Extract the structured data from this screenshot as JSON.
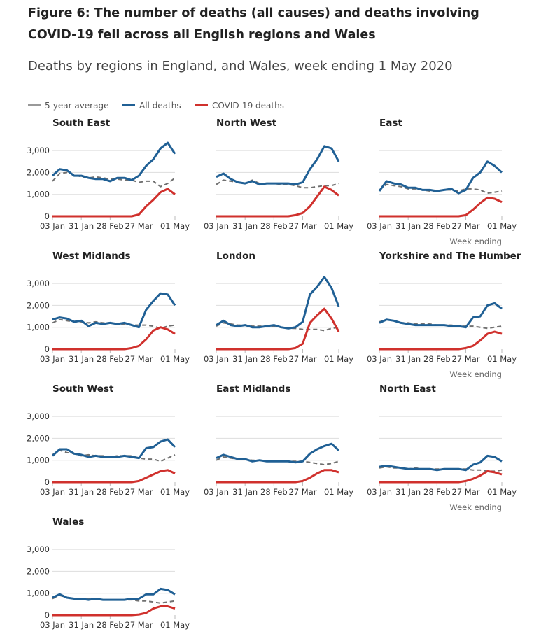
{
  "title": "Figure 6: The number of deaths (all causes) and deaths involving COVID-19 fell across all English regions and Wales",
  "subtitle": "Deaths by regions in England, and Wales, week ending 1 May 2020",
  "chart_data": {
    "type": "line",
    "legend": {
      "position": "top-left",
      "entries": [
        "5-year average",
        "All deaths",
        "COVID-19 deaths"
      ]
    },
    "colors": {
      "5-year average": "#707070",
      "All deaths": "#206095",
      "COVID-19 deaths": "#d0312d"
    },
    "x": [
      "03 Jan",
      "10 Jan",
      "17 Jan",
      "24 Jan",
      "31 Jan",
      "07 Feb",
      "14 Feb",
      "21 Feb",
      "28 Feb",
      "06 Mar",
      "13 Mar",
      "20 Mar",
      "27 Mar",
      "03 Apr",
      "10 Apr",
      "17 Apr",
      "24 Apr",
      "01 May"
    ],
    "x_tick_labels": [
      "03 Jan",
      "31 Jan",
      "28 Feb",
      "27 Mar",
      "01 May"
    ],
    "xlabel": "Week ending",
    "y_tick_labels": [
      "0",
      "1,000",
      "2,000",
      "3,000"
    ],
    "ylim": [
      0,
      3400
    ],
    "panels": [
      {
        "title": "South East",
        "all": [
          1850,
          2150,
          2100,
          1850,
          1850,
          1750,
          1700,
          1700,
          1600,
          1750,
          1750,
          1650,
          1850,
          2300,
          2600,
          3100,
          3350,
          2850
        ],
        "avg": [
          1600,
          1950,
          2000,
          1900,
          1800,
          1750,
          1800,
          1750,
          1700,
          1700,
          1650,
          1650,
          1550,
          1600,
          1600,
          1350,
          1500,
          1750
        ],
        "covid": [
          0,
          0,
          0,
          0,
          0,
          0,
          0,
          0,
          0,
          0,
          0,
          0,
          80,
          450,
          750,
          1100,
          1250,
          1000
        ]
      },
      {
        "title": "North West",
        "all": [
          1800,
          1950,
          1700,
          1550,
          1500,
          1600,
          1450,
          1500,
          1500,
          1500,
          1500,
          1450,
          1550,
          2150,
          2600,
          3200,
          3100,
          2500
        ],
        "avg": [
          1450,
          1650,
          1600,
          1550,
          1500,
          1650,
          1500,
          1500,
          1500,
          1450,
          1450,
          1400,
          1300,
          1300,
          1350,
          1400,
          1400,
          1500
        ],
        "covid": [
          0,
          0,
          0,
          0,
          0,
          0,
          0,
          0,
          0,
          0,
          0,
          50,
          150,
          450,
          900,
          1350,
          1200,
          950
        ]
      },
      {
        "title": "East",
        "all": [
          1150,
          1600,
          1500,
          1450,
          1300,
          1300,
          1200,
          1200,
          1150,
          1200,
          1250,
          1050,
          1200,
          1750,
          2000,
          2500,
          2300,
          2000
        ],
        "avg": [
          1200,
          1450,
          1400,
          1350,
          1250,
          1250,
          1200,
          1150,
          1150,
          1200,
          1200,
          1150,
          1250,
          1250,
          1200,
          1050,
          1100,
          1150
        ],
        "covid": [
          0,
          0,
          0,
          0,
          0,
          0,
          0,
          0,
          0,
          0,
          0,
          0,
          50,
          300,
          600,
          850,
          800,
          650
        ]
      },
      {
        "title": "West Midlands",
        "all": [
          1350,
          1450,
          1400,
          1250,
          1300,
          1050,
          1200,
          1150,
          1200,
          1150,
          1200,
          1100,
          1000,
          1800,
          2200,
          2550,
          2500,
          2000
        ],
        "avg": [
          1200,
          1350,
          1300,
          1250,
          1250,
          1200,
          1250,
          1200,
          1200,
          1150,
          1150,
          1100,
          1100,
          1100,
          1050,
          950,
          1050,
          1100
        ],
        "covid": [
          0,
          0,
          0,
          0,
          0,
          0,
          0,
          0,
          0,
          0,
          0,
          50,
          150,
          450,
          850,
          1000,
          900,
          700
        ]
      },
      {
        "title": "London",
        "all": [
          1100,
          1300,
          1100,
          1050,
          1100,
          1000,
          1000,
          1050,
          1100,
          1000,
          950,
          1000,
          1250,
          2500,
          2850,
          3300,
          2800,
          1950
        ],
        "avg": [
          1050,
          1200,
          1150,
          1100,
          1100,
          1050,
          1050,
          1050,
          1050,
          1000,
          950,
          950,
          900,
          900,
          900,
          850,
          950,
          1000
        ],
        "covid": [
          0,
          0,
          0,
          0,
          0,
          0,
          0,
          0,
          0,
          0,
          0,
          50,
          250,
          1200,
          1550,
          1850,
          1400,
          800
        ]
      },
      {
        "title": "Yorkshire and The Humber",
        "all": [
          1200,
          1350,
          1300,
          1200,
          1150,
          1100,
          1100,
          1100,
          1100,
          1100,
          1050,
          1050,
          1000,
          1450,
          1500,
          2000,
          2100,
          1850
        ],
        "avg": [
          1250,
          1350,
          1300,
          1200,
          1200,
          1150,
          1150,
          1150,
          1100,
          1100,
          1100,
          1050,
          1050,
          1050,
          1000,
          950,
          1000,
          1050
        ],
        "covid": [
          0,
          0,
          0,
          0,
          0,
          0,
          0,
          0,
          0,
          0,
          0,
          0,
          50,
          150,
          400,
          700,
          800,
          700
        ]
      },
      {
        "title": "South West",
        "all": [
          1200,
          1500,
          1500,
          1300,
          1250,
          1150,
          1200,
          1150,
          1150,
          1150,
          1200,
          1150,
          1100,
          1550,
          1600,
          1850,
          1950,
          1600
        ],
        "avg": [
          1250,
          1450,
          1350,
          1300,
          1200,
          1250,
          1200,
          1200,
          1150,
          1200,
          1200,
          1200,
          1100,
          1050,
          1050,
          950,
          1100,
          1250
        ],
        "covid": [
          0,
          0,
          0,
          0,
          0,
          0,
          0,
          0,
          0,
          0,
          0,
          0,
          50,
          200,
          350,
          500,
          550,
          400
        ]
      },
      {
        "title": "East Midlands",
        "all": [
          1100,
          1250,
          1150,
          1050,
          1050,
          950,
          1000,
          950,
          950,
          950,
          950,
          900,
          950,
          1300,
          1500,
          1650,
          1750,
          1450
        ],
        "avg": [
          1000,
          1150,
          1100,
          1050,
          1050,
          1000,
          1000,
          950,
          950,
          950,
          950,
          950,
          950,
          900,
          850,
          800,
          850,
          950
        ],
        "covid": [
          0,
          0,
          0,
          0,
          0,
          0,
          0,
          0,
          0,
          0,
          0,
          0,
          50,
          200,
          400,
          550,
          550,
          450
        ]
      },
      {
        "title": "North East",
        "all": [
          700,
          750,
          700,
          650,
          600,
          600,
          600,
          600,
          550,
          600,
          600,
          600,
          550,
          800,
          900,
          1200,
          1150,
          950
        ],
        "avg": [
          650,
          700,
          650,
          650,
          600,
          650,
          600,
          600,
          600,
          600,
          600,
          600,
          600,
          550,
          550,
          500,
          500,
          550
        ],
        "covid": [
          0,
          0,
          0,
          0,
          0,
          0,
          0,
          0,
          0,
          0,
          0,
          0,
          50,
          150,
          300,
          500,
          450,
          350
        ]
      },
      {
        "title": "Wales",
        "all": [
          800,
          950,
          800,
          750,
          750,
          700,
          750,
          700,
          700,
          700,
          700,
          750,
          750,
          950,
          950,
          1200,
          1150,
          950
        ],
        "avg": [
          750,
          900,
          800,
          750,
          750,
          750,
          750,
          700,
          700,
          700,
          700,
          700,
          650,
          650,
          600,
          550,
          600,
          650
        ],
        "covid": [
          0,
          0,
          0,
          0,
          0,
          0,
          0,
          0,
          0,
          0,
          0,
          0,
          30,
          100,
          300,
          400,
          400,
          300
        ]
      }
    ]
  }
}
